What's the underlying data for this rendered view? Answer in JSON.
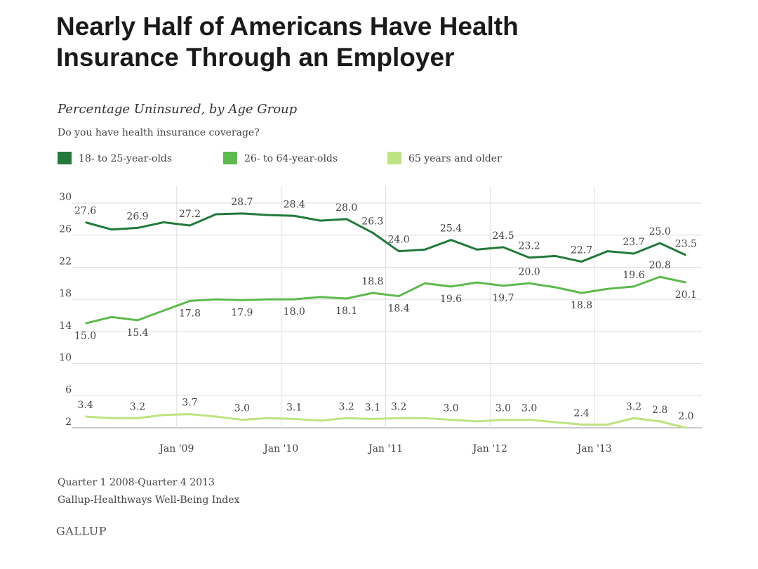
{
  "header": {
    "title": "Nearly Half of Americans Have Health Insurance Through an Employer"
  },
  "chart_data": {
    "type": "line",
    "title": "Percentage Uninsured, by Age Group",
    "subtitle": "Do you have health insurance coverage?",
    "x": [
      2008.125,
      2008.375,
      2008.625,
      2008.875,
      2009.125,
      2009.375,
      2009.625,
      2009.875,
      2010.125,
      2010.375,
      2010.625,
      2010.875,
      2011.125,
      2011.375,
      2011.625,
      2011.875,
      2012.125,
      2012.375,
      2012.625,
      2012.875,
      2013.125,
      2013.375,
      2013.625,
      2013.875
    ],
    "xlim": [
      2008,
      2014
    ],
    "xticks": [
      {
        "value": 2009,
        "label": "Jan '09"
      },
      {
        "value": 2010,
        "label": "Jan '10"
      },
      {
        "value": 2011,
        "label": "Jan '11"
      },
      {
        "value": 2012,
        "label": "Jan '12"
      },
      {
        "value": 2013,
        "label": "Jan '13"
      }
    ],
    "ylim": [
      2,
      30
    ],
    "yticks": [
      2,
      6,
      10,
      14,
      18,
      22,
      26,
      30
    ],
    "grid": true,
    "legend": "top",
    "series": [
      {
        "name": "18- to 25-year-olds",
        "color": "#217a3a",
        "values": [
          27.6,
          26.7,
          26.9,
          27.6,
          27.2,
          28.6,
          28.7,
          28.5,
          28.4,
          27.8,
          28.0,
          26.3,
          24.0,
          24.2,
          25.4,
          24.2,
          24.5,
          23.2,
          23.4,
          22.7,
          24.0,
          23.7,
          25.0,
          23.5
        ],
        "value_labels": [
          "27.6",
          null,
          "26.9",
          null,
          "27.2",
          null,
          "28.7",
          null,
          "28.4",
          null,
          "28.0",
          "26.3",
          "24.0",
          null,
          "25.4",
          null,
          "24.5",
          "23.2",
          null,
          "22.7",
          null,
          "23.7",
          "25.0",
          "23.5"
        ]
      },
      {
        "name": "26- to 64-year-olds",
        "color": "#5dba4d",
        "values": [
          15.0,
          15.8,
          15.4,
          16.6,
          17.8,
          18.0,
          17.9,
          18.0,
          18.0,
          18.3,
          18.1,
          18.8,
          18.4,
          20.0,
          19.6,
          20.1,
          19.7,
          20.0,
          19.5,
          18.8,
          19.3,
          19.6,
          20.8,
          20.1
        ],
        "value_labels": [
          "15.0",
          null,
          "15.4",
          null,
          "17.8",
          null,
          "17.9",
          null,
          "18.0",
          null,
          "18.1",
          "18.8",
          "18.4",
          null,
          "19.6",
          null,
          "19.7",
          "20.0",
          null,
          "18.8",
          null,
          "19.6",
          "20.8",
          "20.1"
        ]
      },
      {
        "name": "65 years and older",
        "color": "#bde47e",
        "values": [
          3.4,
          3.2,
          3.2,
          3.6,
          3.7,
          3.4,
          3.0,
          3.2,
          3.1,
          2.9,
          3.2,
          3.1,
          3.2,
          3.2,
          3.0,
          2.8,
          3.0,
          3.0,
          2.7,
          2.4,
          2.4,
          3.2,
          2.8,
          2.0
        ],
        "value_labels": [
          "3.4",
          null,
          "3.2",
          null,
          "3.7",
          null,
          "3.0",
          null,
          "3.1",
          null,
          "3.2",
          "3.1",
          "3.2",
          null,
          "3.0",
          null,
          "3.0",
          "3.0",
          null,
          "2.4",
          null,
          "3.2",
          "2.8",
          "2.0"
        ]
      }
    ],
    "notes": [
      "Quarter 1 2008-Quarter 4 2013",
      "Gallup-Healthways Well-Being Index"
    ],
    "source": "GALLUP"
  }
}
